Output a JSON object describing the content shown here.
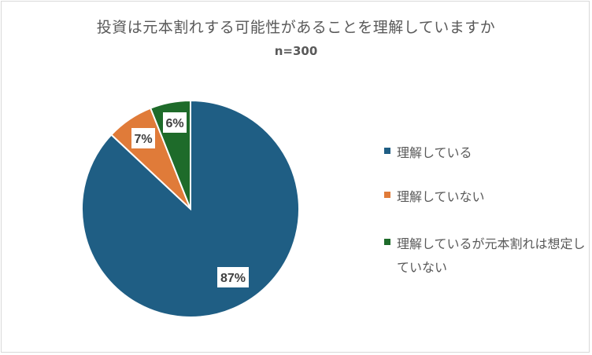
{
  "chart_data": {
    "type": "pie",
    "title": "投資は元本割れする可能性があることを理解していますか",
    "subtitle": "n=300",
    "slices": [
      {
        "name": "理解している",
        "value": 87,
        "label": "87%",
        "color": "#1f5e84"
      },
      {
        "name": "理解していない",
        "value": 7,
        "label": "7%",
        "color": "#e07b39"
      },
      {
        "name": "理解しているが元本割れは想定していない",
        "value": 6,
        "label": "6%",
        "color": "#1e6b2a"
      }
    ],
    "legend_position": "right"
  },
  "legend": {
    "items": [
      {
        "label": "理解している"
      },
      {
        "label": "理解していない"
      },
      {
        "label": "理解しているが元本割れは想定していない"
      }
    ]
  }
}
